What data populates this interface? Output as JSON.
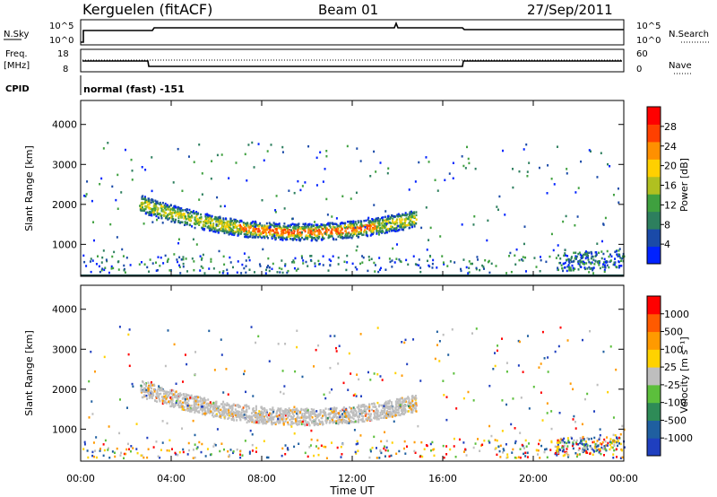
{
  "header": {
    "station": "Kerguelen (fitACF)",
    "beam": "Beam 01",
    "date": "27/Sep/2011"
  },
  "noise_panel": {
    "left_label": "N.Sky",
    "right_label": "N.Search",
    "left_ticks": [
      "10^5",
      "10^0"
    ],
    "right_ticks": [
      "10^5",
      "10^0"
    ]
  },
  "freq_panel": {
    "left_label_1": "Freq.",
    "left_label_2": "[MHz]",
    "left_ticks": [
      "18",
      "8"
    ],
    "right_label": "Nave",
    "right_ticks": [
      "60",
      "0"
    ]
  },
  "cpid": {
    "label": "CPID",
    "value": "normal (fast) -151"
  },
  "colors": {
    "power_scale": [
      "#0022ff",
      "#1a4aa8",
      "#2d7f5e",
      "#3fa03f",
      "#b0c020",
      "#ffd000",
      "#ff9000",
      "#ff4000",
      "#ff0000"
    ],
    "velocity_scale": [
      "#1f3fbf",
      "#1f5fa0",
      "#2e8b57",
      "#5cbf3c",
      "#bebebe",
      "#ffd200",
      "#ff9a00",
      "#ff5a00",
      "#ff0000"
    ]
  },
  "chart_data": [
    {
      "type": "heatmap",
      "name": "power",
      "ylabel": "Slant Range [km]",
      "yticks": [
        "4000",
        "3000",
        "2000",
        "1000"
      ],
      "colorbar_label": "Power [dB]",
      "colorbar_ticks": [
        "28",
        "24",
        "20",
        "16",
        "12",
        "8",
        "4"
      ],
      "ylim": [
        200,
        4600
      ]
    },
    {
      "type": "heatmap",
      "name": "velocity",
      "ylabel": "Slant Range [km]",
      "yticks": [
        "4000",
        "3000",
        "2000",
        "1000"
      ],
      "colorbar_label": "Velocity [m s⁻¹]",
      "colorbar_ticks": [
        "1000",
        "500",
        "100",
        "25",
        "-25",
        "-100",
        "-500",
        "-1000"
      ],
      "ylim": [
        200,
        4600
      ]
    }
  ],
  "time_axis": {
    "xlabel": "Time UT",
    "ticks": [
      "00:00",
      "04:00",
      "08:00",
      "12:00",
      "16:00",
      "20:00",
      "00:00"
    ]
  }
}
